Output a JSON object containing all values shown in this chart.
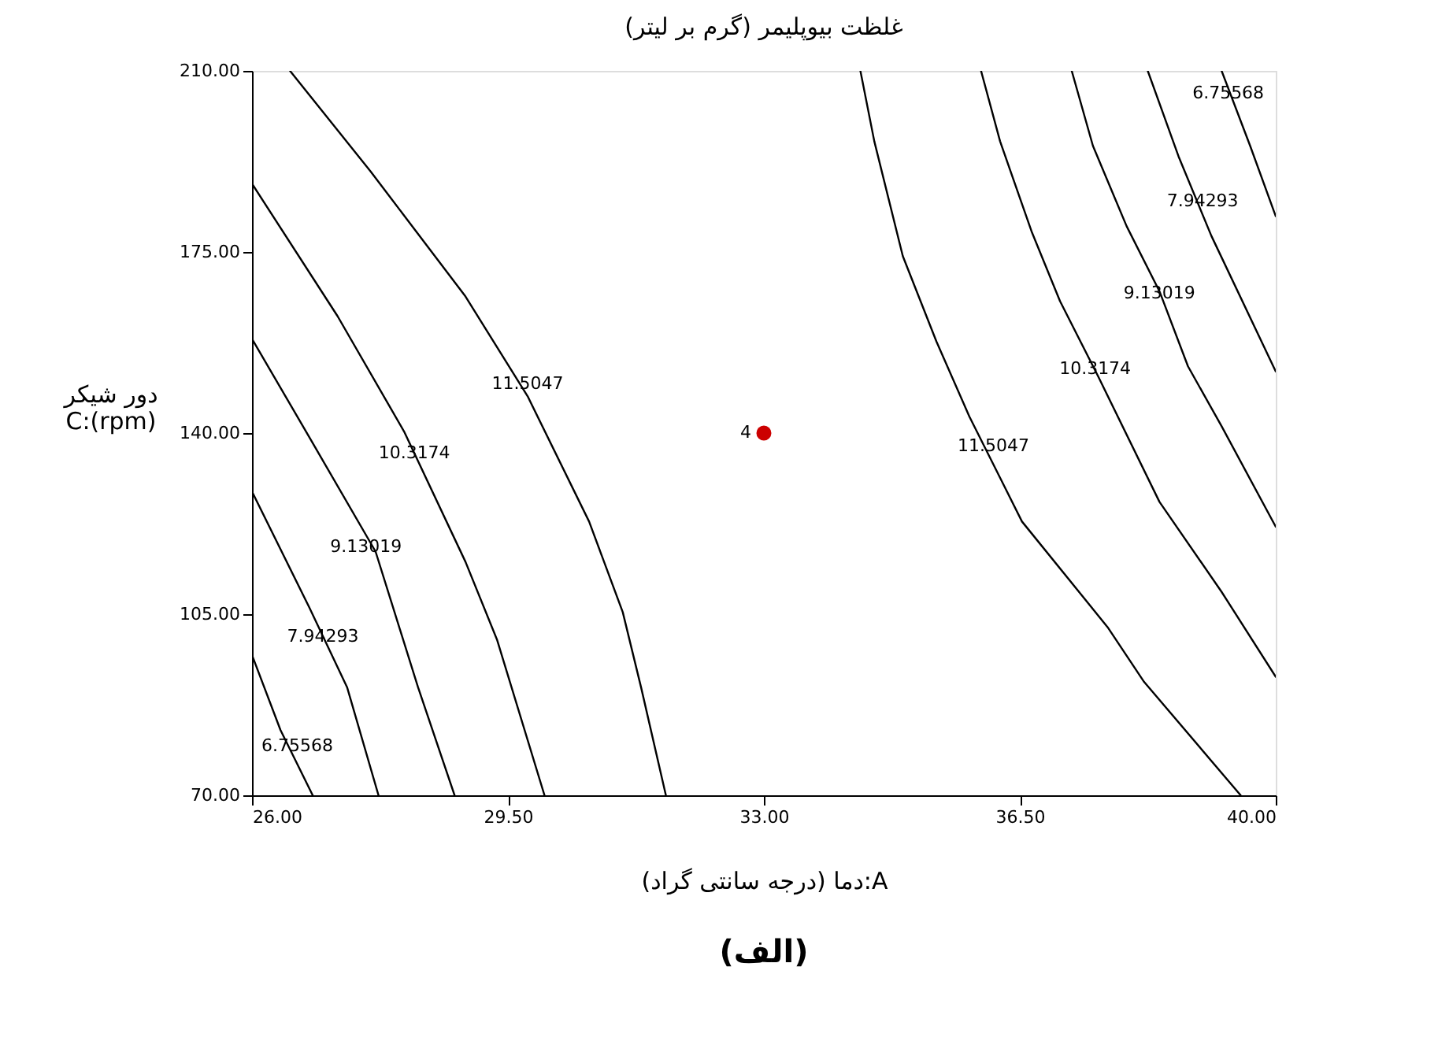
{
  "chart_data": {
    "type": "line",
    "title": "غلظت بیوپلیمر (گرم بر لیتر)",
    "xlabel": "دما (درجه سانتی گراد):A",
    "ylabel": "دور شیکر\nC:(rpm)",
    "xlim": [
      26,
      40
    ],
    "ylim": [
      70,
      210
    ],
    "xticks": [
      {
        "value": 26,
        "label": "26.00"
      },
      {
        "value": 29.5,
        "label": "29.50"
      },
      {
        "value": 33,
        "label": "33.00"
      },
      {
        "value": 36.5,
        "label": "36.50"
      },
      {
        "value": 40,
        "label": "40.00"
      }
    ],
    "yticks": [
      {
        "value": 70,
        "label": "70.00"
      },
      {
        "value": 105,
        "label": "105.00"
      },
      {
        "value": 140,
        "label": "140.00"
      },
      {
        "value": 175,
        "label": "175.00"
      },
      {
        "value": 210,
        "label": "210.00"
      }
    ],
    "grid": false,
    "marker": "none",
    "line_style": "solid",
    "series": [
      {
        "color": "#000000",
        "x": [
          26.52,
          27.62,
          28.92,
          29.77,
          30.61,
          31.07,
          31.32,
          31.66
        ],
        "values": [
          210,
          190.6,
          166.4,
          147.1,
          122.9,
          105.4,
          90.9,
          70
        ]
      },
      {
        "color": "#000000",
        "x": [
          26,
          27.17,
          28.08,
          28.92,
          29.35,
          30.0
        ],
        "values": [
          188.2,
          162.6,
          140.3,
          115.1,
          100.1,
          70
        ]
      },
      {
        "color": "#000000",
        "x": [
          26,
          26.78,
          27.69,
          28.27,
          28.77
        ],
        "values": [
          158.2,
          139.3,
          117.1,
          90.9,
          70
        ]
      },
      {
        "color": "#000000",
        "x": [
          26,
          26.78,
          27.3,
          27.73
        ],
        "values": [
          128.7,
          106.4,
          90.9,
          70
        ]
      },
      {
        "color": "#000000",
        "x": [
          26,
          26.39,
          26.83
        ],
        "values": [
          97.1,
          82.6,
          70
        ]
      },
      {
        "color": "#000000",
        "x": [
          34.32,
          34.51,
          34.9,
          35.36,
          35.81,
          36.53,
          37.7,
          38.2,
          39.52
        ],
        "values": [
          210,
          196.4,
          174.2,
          157.7,
          143.2,
          122.9,
          102.5,
          91.9,
          70
        ]
      },
      {
        "color": "#000000",
        "x": [
          35.97,
          36.23,
          36.66,
          37.05,
          37.57,
          38.41,
          39.26,
          40
        ],
        "values": [
          210,
          196.4,
          179.0,
          165.5,
          151.0,
          126.7,
          109.3,
          92.9
        ]
      },
      {
        "color": "#000000",
        "x": [
          37.21,
          37.5,
          37.96,
          38.41,
          38.8,
          39.26,
          40
        ],
        "values": [
          210,
          195.5,
          180.0,
          167.4,
          152.9,
          141.3,
          121.9
        ]
      },
      {
        "color": "#000000",
        "x": [
          38.25,
          38.67,
          39.12,
          40
        ],
        "values": [
          210,
          193.5,
          178.1,
          151.9
        ]
      },
      {
        "color": "#000000",
        "x": [
          39.26,
          39.65,
          40
        ],
        "values": [
          210,
          195.5,
          181.9
        ]
      },
      {
        "type": "scatter",
        "marker": "circle",
        "color": "#cc0000",
        "x": [
          33
        ],
        "values": [
          140
        ]
      }
    ],
    "annotations": [
      {
        "text": "11.5047",
        "x": 29.77,
        "y": 149.5
      },
      {
        "text": "10.3174",
        "x": 28.22,
        "y": 136.0
      },
      {
        "text": "9.13019",
        "x": 27.56,
        "y": 118.0
      },
      {
        "text": "7.94293",
        "x": 26.97,
        "y": 100.6
      },
      {
        "text": "6.75568",
        "x": 26.62,
        "y": 79.5
      },
      {
        "text": "6.75568",
        "x": 39.35,
        "y": 205.6
      },
      {
        "text": "7.94293",
        "x": 39.0,
        "y": 184.8
      },
      {
        "text": "9.13019",
        "x": 38.41,
        "y": 166.9
      },
      {
        "text": "10.3174",
        "x": 37.53,
        "y": 152.4
      },
      {
        "text": "11.5047",
        "x": 36.14,
        "y": 137.4
      },
      {
        "text": "4",
        "x": 33,
        "y": 140
      },
      "(الف)"
    ]
  }
}
